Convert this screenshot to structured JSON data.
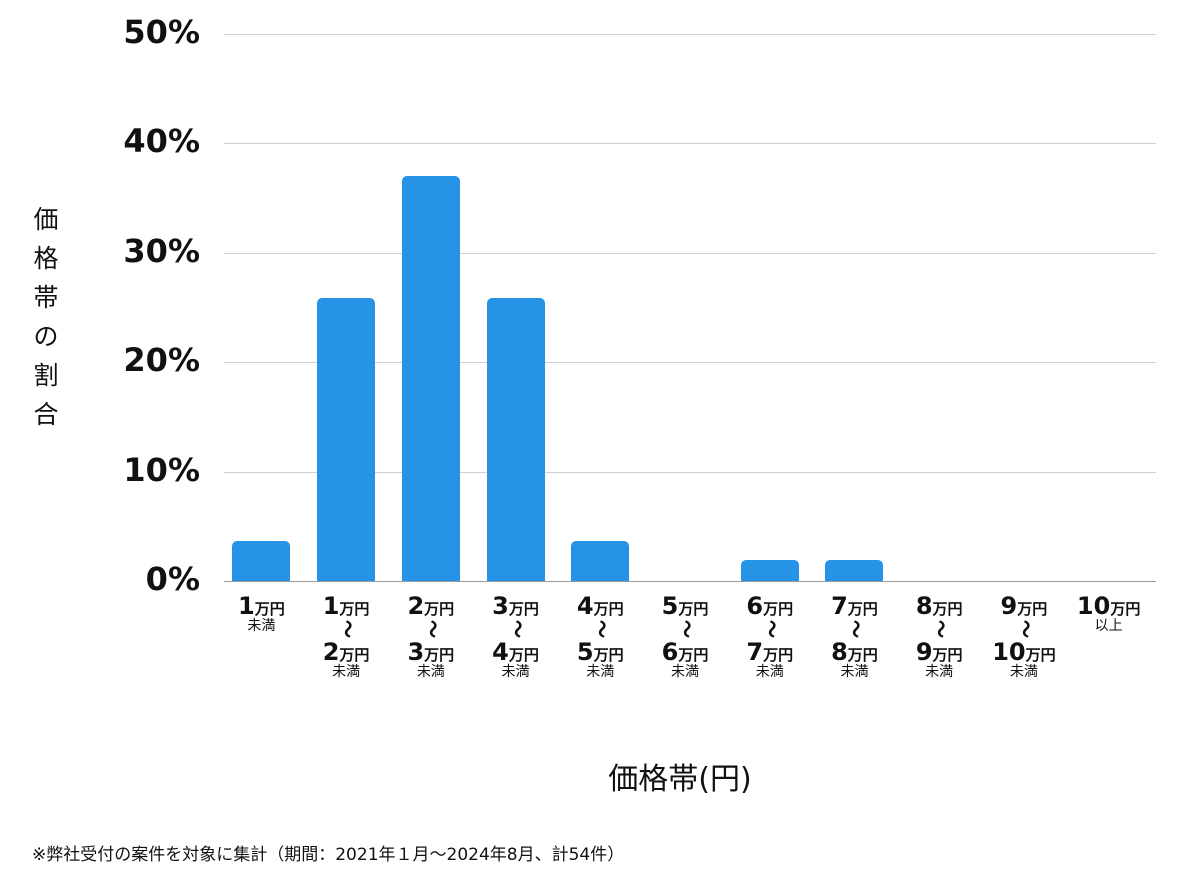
{
  "chart_data": {
    "type": "bar",
    "title": "",
    "xlabel": "価格帯(円)",
    "ylabel": "価格帯の割合",
    "ylim": [
      0,
      50
    ],
    "yticks": [
      "0%",
      "10%",
      "20%",
      "30%",
      "40%",
      "50%"
    ],
    "grid": true,
    "bar_color": "#2693e6",
    "categories": [
      {
        "top": "1",
        "unit": "万円",
        "sub": "未満"
      },
      {
        "top": "1",
        "unit": "万円",
        "bottom": "2",
        "sub": "未満"
      },
      {
        "top": "2",
        "unit": "万円",
        "bottom": "3",
        "sub": "未満"
      },
      {
        "top": "3",
        "unit": "万円",
        "bottom": "4",
        "sub": "未満"
      },
      {
        "top": "4",
        "unit": "万円",
        "bottom": "5",
        "sub": "未満"
      },
      {
        "top": "5",
        "unit": "万円",
        "bottom": "6",
        "sub": "未満"
      },
      {
        "top": "6",
        "unit": "万円",
        "bottom": "7",
        "sub": "未満"
      },
      {
        "top": "7",
        "unit": "万円",
        "bottom": "8",
        "sub": "未満"
      },
      {
        "top": "8",
        "unit": "万円",
        "bottom": "9",
        "sub": "未満"
      },
      {
        "top": "9",
        "unit": "万円",
        "bottom": "10",
        "sub": "未満"
      },
      {
        "top": "10",
        "unit": "万円",
        "sub": "以上"
      }
    ],
    "category_labels": [
      "1万円未満",
      "1万円〜2万円未満",
      "2万円〜3万円未満",
      "3万円〜4万円未満",
      "4万円〜5万円未満",
      "5万円〜6万円未満",
      "6万円〜7万円未満",
      "7万円〜8万円未満",
      "8万円〜9万円未満",
      "9万円〜10万円未満",
      "10万円以上"
    ],
    "values": [
      3.7,
      25.9,
      37.0,
      25.9,
      3.7,
      0,
      1.9,
      1.9,
      0,
      0,
      0
    ],
    "tilde": "〜"
  },
  "footnote": "※弊社受付の案件を対象に集計（期間：2021年１月〜2024年8月、計54件）"
}
